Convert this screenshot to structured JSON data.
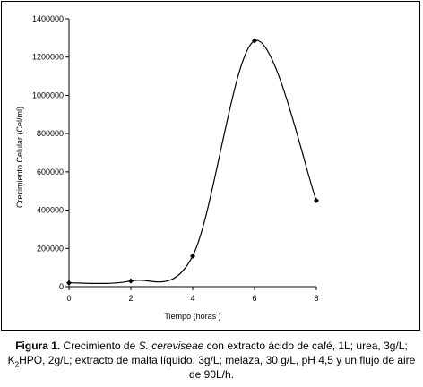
{
  "chart_data": {
    "type": "line",
    "xlabel": "Tiempo (horas )",
    "ylabel": "Crecimiento Celular (Cel/ml)",
    "xlim": [
      0,
      8
    ],
    "ylim": [
      0,
      1400000
    ],
    "x_ticks": [
      "0",
      "2",
      "4",
      "6",
      "8"
    ],
    "y_ticks": [
      "0",
      "200000",
      "400000",
      "600000",
      "800000",
      "1000000",
      "1200000",
      "1400000"
    ],
    "grid": false,
    "legend": "none",
    "series": [
      {
        "x": [
          0,
          2,
          4,
          6,
          8
        ],
        "values": [
          20000,
          30000,
          160000,
          1285000,
          450000
        ]
      }
    ]
  },
  "caption": {
    "figure_label": "Figura 1.",
    "part1": " Crecimiento de ",
    "species": "S. cereviseae",
    "part2": " con extracto ácido de café, 1L; urea, 3g/L; K",
    "sub": "2",
    "part3": "HPO, 2g/L; extracto de malta líquido, 3g/L; melaza, 30 g/L, pH 4,5 y un flujo de aire de 90L/h."
  }
}
